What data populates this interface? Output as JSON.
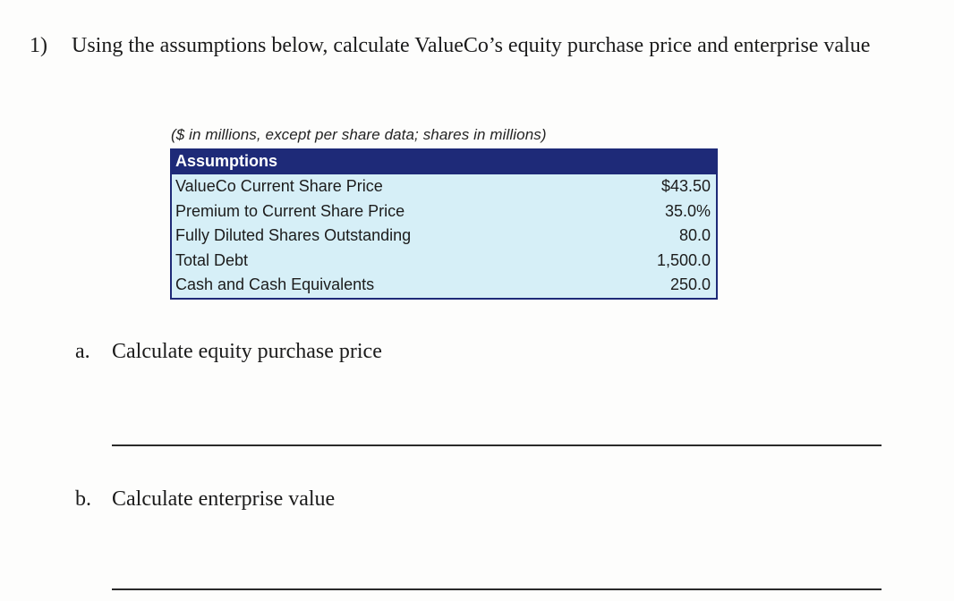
{
  "question": {
    "number": "1)",
    "text": "Using the assumptions below, calculate ValueCo’s equity purchase price and enterprise value"
  },
  "table": {
    "caption": "($ in millions, except per share data; shares in millions)",
    "header": "Assumptions",
    "rows": [
      {
        "label": "ValueCo Current Share Price",
        "value": "$43.50"
      },
      {
        "label": "Premium to Current Share Price",
        "value": "35.0%"
      },
      {
        "label": "Fully Diluted Shares Outstanding",
        "value": "80.0"
      },
      {
        "label": "Total Debt",
        "value": "1,500.0"
      },
      {
        "label": "Cash and Cash Equivalents",
        "value": "250.0"
      }
    ]
  },
  "parts": [
    {
      "letter": "a.",
      "text": "Calculate equity purchase price"
    },
    {
      "letter": "b.",
      "text": "Calculate enterprise value"
    }
  ],
  "theme": {
    "header_navy": "#1e2a78",
    "body_light_blue": "#d6eff7",
    "page_background": "#fdfdfc"
  }
}
